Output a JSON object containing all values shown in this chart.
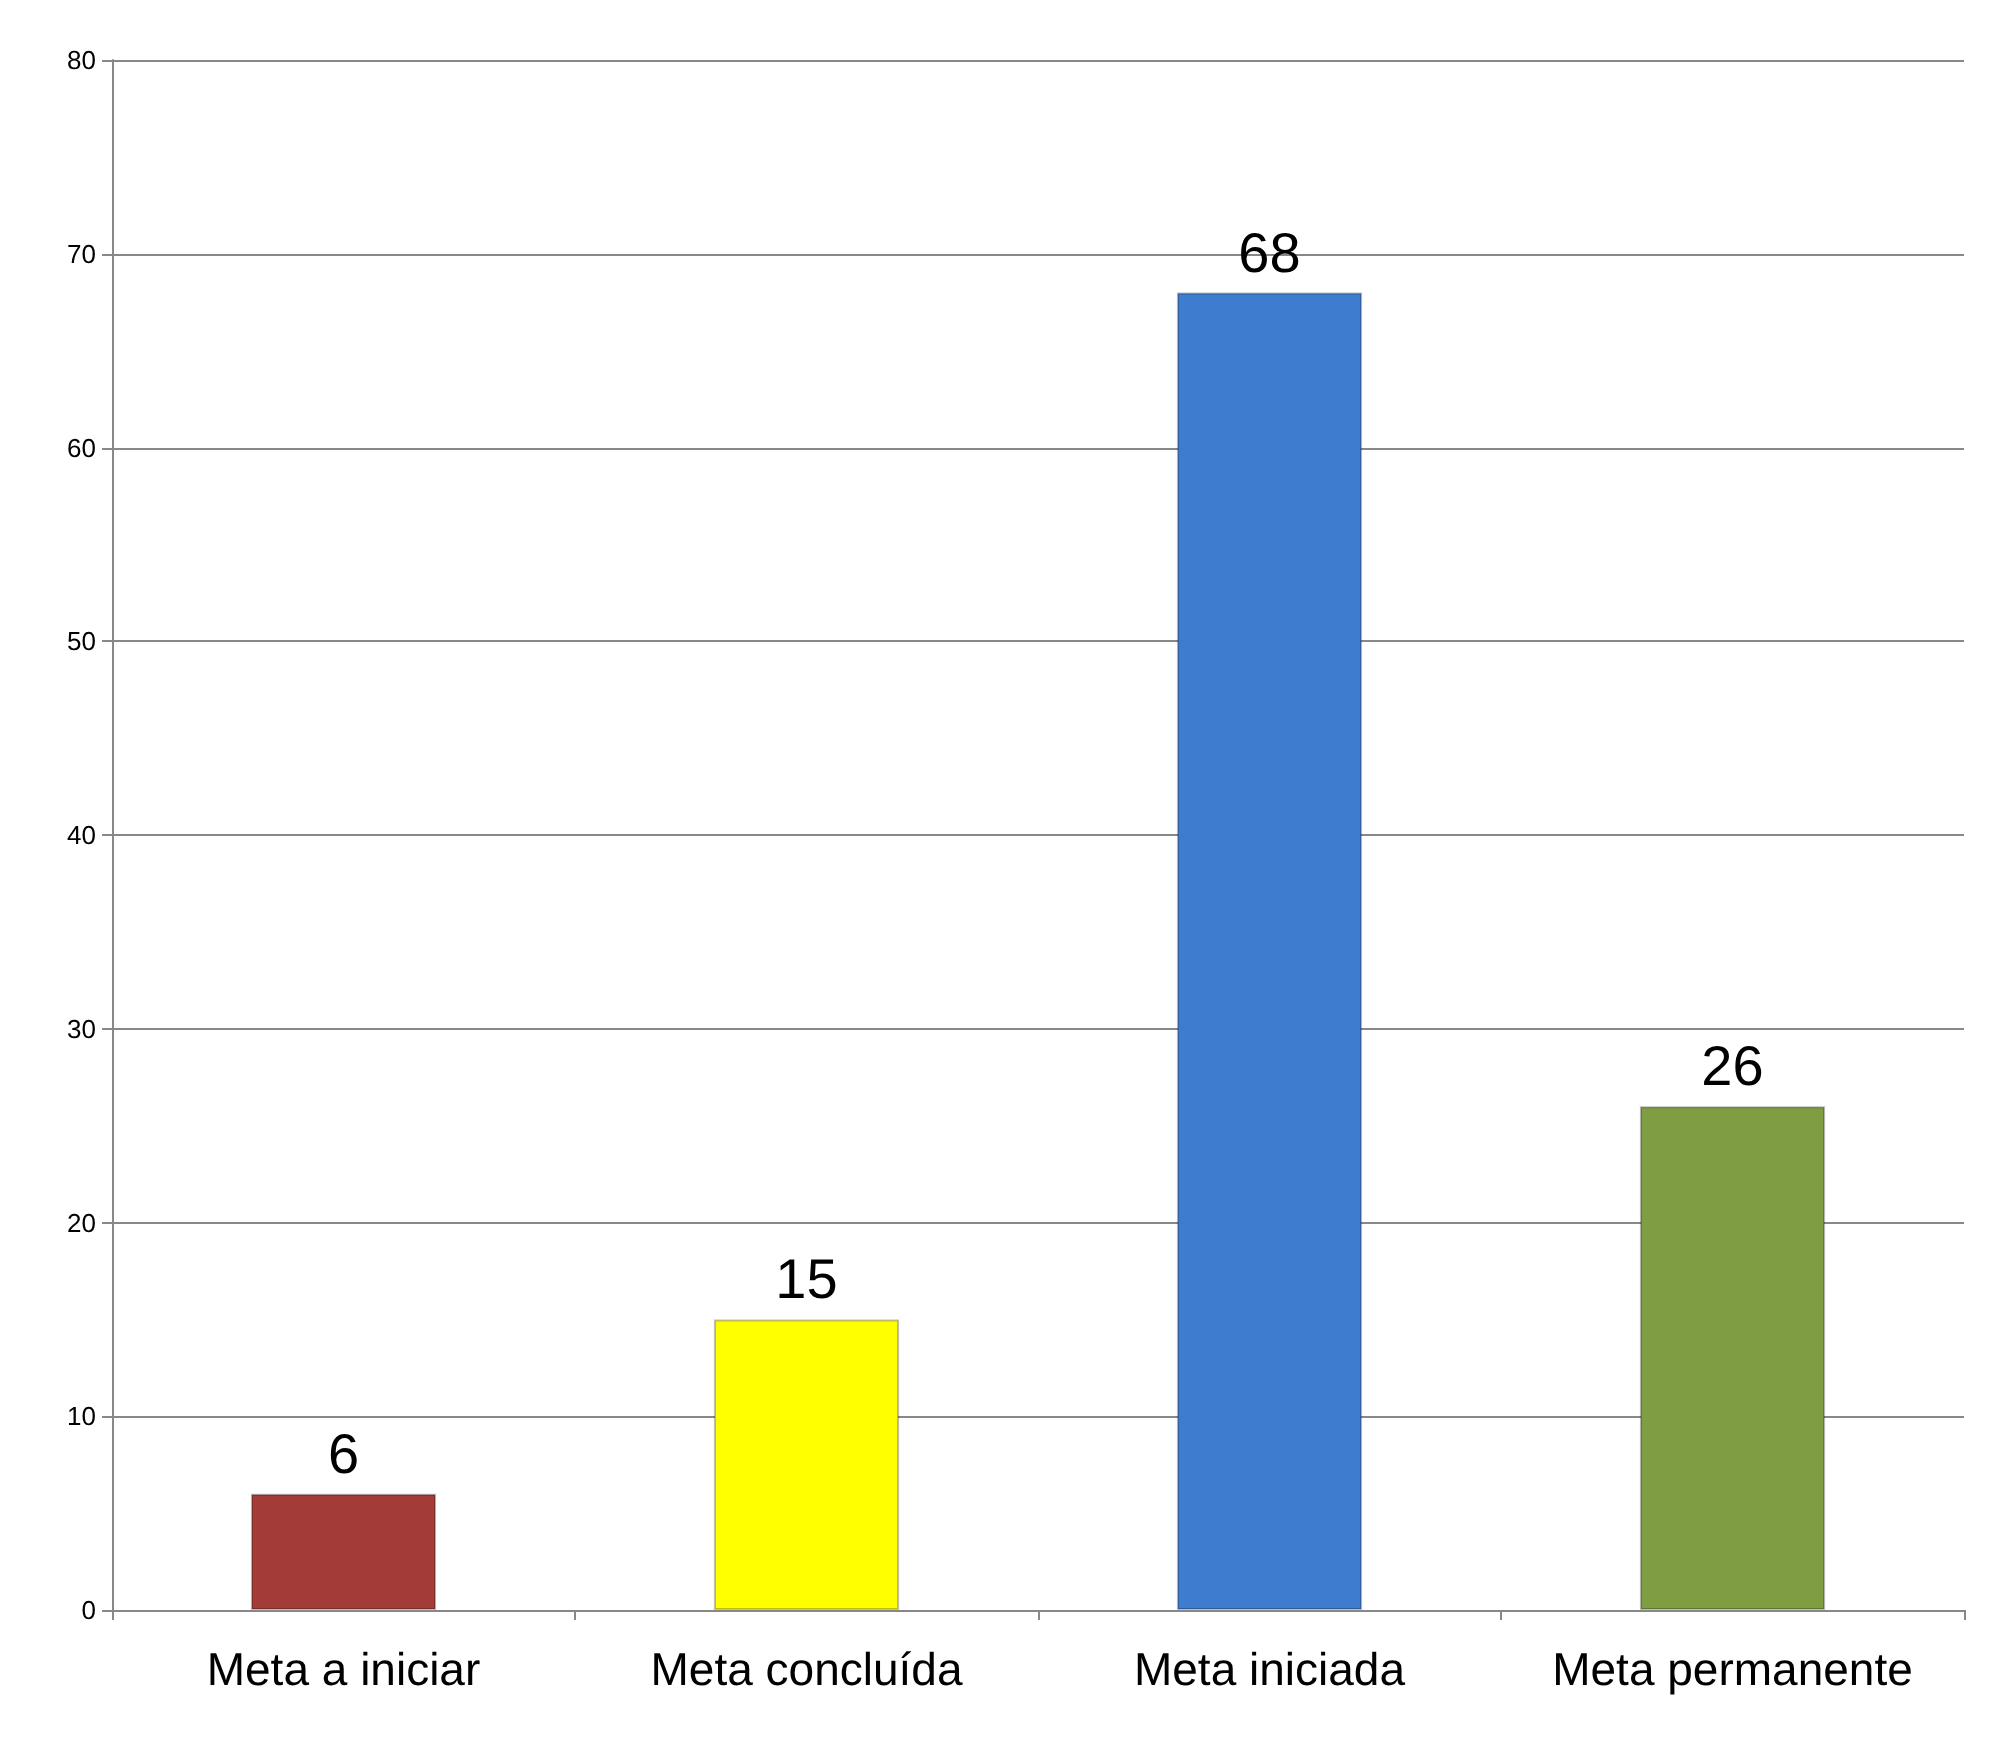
{
  "chart_data": {
    "type": "bar",
    "categories": [
      "Meta a iniciar",
      "Meta concluída",
      "Meta iniciada",
      "Meta permanente"
    ],
    "values": [
      6,
      15,
      68,
      26
    ],
    "colors": [
      "#a33b38",
      "#ffff00",
      "#3d7ccf",
      "#7f9e41"
    ],
    "ylim": [
      0,
      80
    ],
    "yticks": [
      0,
      10,
      20,
      30,
      40,
      50,
      60,
      70,
      80
    ],
    "grid": "y",
    "data_labels": true
  }
}
